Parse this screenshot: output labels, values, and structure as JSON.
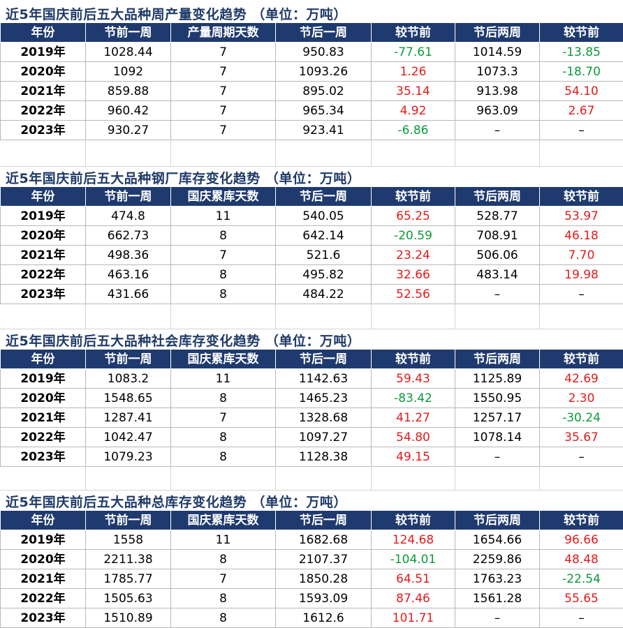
{
  "colors": {
    "header_bg": "#1f3a6e",
    "title_text": "#1f3a68",
    "positive": "#e41a1a",
    "negative": "#0a9a3a"
  },
  "sections": [
    {
      "title": "近5年国庆前后五大品种周产量变化趋势  （单位：万吨）",
      "headers": [
        "年份",
        "节前一周",
        "产量周期天数",
        "节后一周",
        "较节前",
        "节后两周",
        "较节前"
      ],
      "rows": [
        {
          "year": "2019年",
          "pre": "1028.44",
          "days": "7",
          "post1": "950.83",
          "chg1": "-77.61",
          "post2": "1014.59",
          "chg2": "-13.85"
        },
        {
          "year": "2020年",
          "pre": "1092",
          "days": "7",
          "post1": "1093.26",
          "chg1": "1.26",
          "post2": "1073.3",
          "chg2": "-18.70"
        },
        {
          "year": "2021年",
          "pre": "859.88",
          "days": "7",
          "post1": "895.02",
          "chg1": "35.14",
          "post2": "913.98",
          "chg2": "54.10"
        },
        {
          "year": "2022年",
          "pre": "960.42",
          "days": "7",
          "post1": "965.34",
          "chg1": "4.92",
          "post2": "963.09",
          "chg2": "2.67"
        },
        {
          "year": "2023年",
          "pre": "930.27",
          "days": "7",
          "post1": "923.41",
          "chg1": "-6.86",
          "post2": "–",
          "chg2": "–"
        }
      ]
    },
    {
      "title": "近5年国庆前后五大品种钢厂库存变化趋势  （单位：万吨）",
      "headers": [
        "年份",
        "节前一周",
        "国庆累库天数",
        "节后一周",
        "较节前",
        "节后两周",
        "较节前"
      ],
      "rows": [
        {
          "year": "2019年",
          "pre": "474.8",
          "days": "11",
          "post1": "540.05",
          "chg1": "65.25",
          "post2": "528.77",
          "chg2": "53.97"
        },
        {
          "year": "2020年",
          "pre": "662.73",
          "days": "8",
          "post1": "642.14",
          "chg1": "-20.59",
          "post2": "708.91",
          "chg2": "46.18"
        },
        {
          "year": "2021年",
          "pre": "498.36",
          "days": "7",
          "post1": "521.6",
          "chg1": "23.24",
          "post2": "506.06",
          "chg2": "7.70"
        },
        {
          "year": "2022年",
          "pre": "463.16",
          "days": "8",
          "post1": "495.82",
          "chg1": "32.66",
          "post2": "483.14",
          "chg2": "19.98"
        },
        {
          "year": "2023年",
          "pre": "431.66",
          "days": "8",
          "post1": "484.22",
          "chg1": "52.56",
          "post2": "–",
          "chg2": "–"
        }
      ]
    },
    {
      "title": "近5年国庆前后五大品种社会库存变化趋势  （单位：万吨）",
      "headers": [
        "年份",
        "节前一周",
        "国庆累库天数",
        "节后一周",
        "较节前",
        "节后两周",
        "较节前"
      ],
      "rows": [
        {
          "year": "2019年",
          "pre": "1083.2",
          "days": "11",
          "post1": "1142.63",
          "chg1": "59.43",
          "post2": "1125.89",
          "chg2": "42.69"
        },
        {
          "year": "2020年",
          "pre": "1548.65",
          "days": "8",
          "post1": "1465.23",
          "chg1": "-83.42",
          "post2": "1550.95",
          "chg2": "2.30"
        },
        {
          "year": "2021年",
          "pre": "1287.41",
          "days": "7",
          "post1": "1328.68",
          "chg1": "41.27",
          "post2": "1257.17",
          "chg2": "-30.24"
        },
        {
          "year": "2022年",
          "pre": "1042.47",
          "days": "8",
          "post1": "1097.27",
          "chg1": "54.80",
          "post2": "1078.14",
          "chg2": "35.67"
        },
        {
          "year": "2023年",
          "pre": "1079.23",
          "days": "8",
          "post1": "1128.38",
          "chg1": "49.15",
          "post2": "–",
          "chg2": "–"
        }
      ]
    },
    {
      "title": "近5年国庆前后五大品种总库存变化趋势  （单位：万吨）",
      "headers": [
        "年份",
        "节前一周",
        "国庆累库天数",
        "节后一周",
        "较节前",
        "节后两周",
        "较节前"
      ],
      "rows": [
        {
          "year": "2019年",
          "pre": "1558",
          "days": "11",
          "post1": "1682.68",
          "chg1": "124.68",
          "post2": "1654.66",
          "chg2": "96.66"
        },
        {
          "year": "2020年",
          "pre": "2211.38",
          "days": "8",
          "post1": "2107.37",
          "chg1": "-104.01",
          "post2": "2259.86",
          "chg2": "48.48"
        },
        {
          "year": "2021年",
          "pre": "1785.77",
          "days": "7",
          "post1": "1850.28",
          "chg1": "64.51",
          "post2": "1763.23",
          "chg2": "-22.54"
        },
        {
          "year": "2022年",
          "pre": "1505.63",
          "days": "8",
          "post1": "1593.09",
          "chg1": "87.46",
          "post2": "1561.28",
          "chg2": "55.65"
        },
        {
          "year": "2023年",
          "pre": "1510.89",
          "days": "8",
          "post1": "1612.6",
          "chg1": "101.71",
          "post2": "–",
          "chg2": "–"
        }
      ]
    }
  ]
}
